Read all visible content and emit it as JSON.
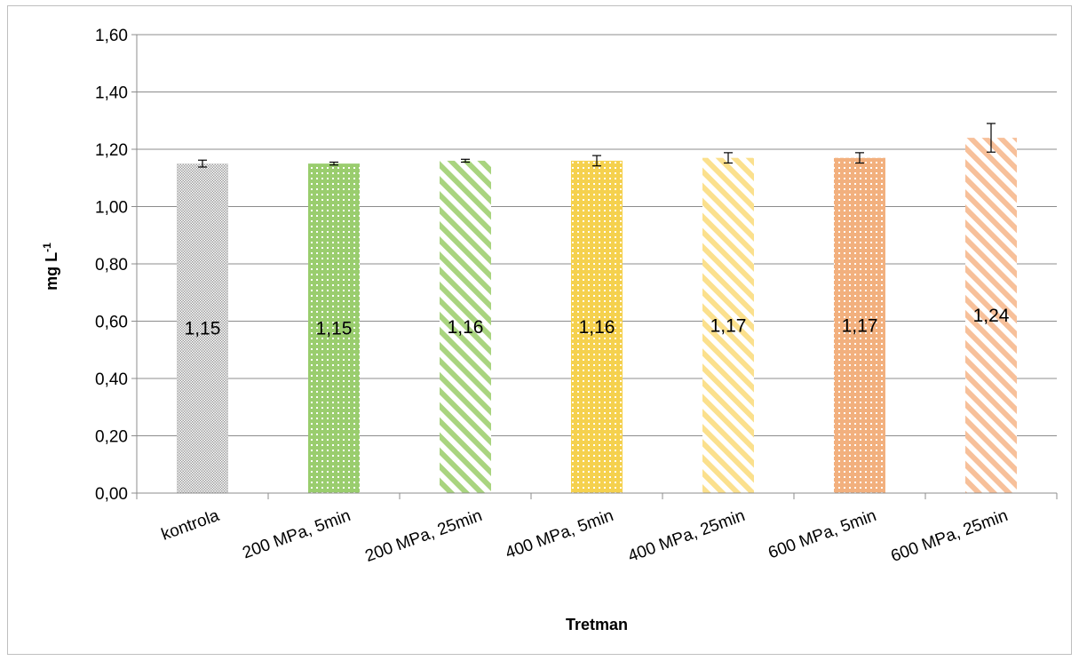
{
  "chart_data": {
    "type": "bar",
    "title": "",
    "xlabel": "Tretman",
    "ylabel_base": "mg L",
    "ylabel_sup": "-1",
    "ylim": [
      0,
      1.6
    ],
    "y_ticks": [
      "0,00",
      "0,20",
      "0,40",
      "0,60",
      "0,80",
      "1,00",
      "1,20",
      "1,40",
      "1,60"
    ],
    "y_tick_values": [
      0,
      0.2,
      0.4,
      0.6,
      0.8,
      1.0,
      1.2,
      1.4,
      1.6
    ],
    "grid": true,
    "categories": [
      "kontrola",
      "200 MPa, 5min",
      "200 MPa, 25min",
      "400 MPa, 5min",
      "400 MPa, 25min",
      "600 MPa, 5min",
      "600 MPa, 25min"
    ],
    "values": [
      1.15,
      1.15,
      1.16,
      1.16,
      1.17,
      1.17,
      1.24
    ],
    "data_labels": [
      "1,15",
      "1,15",
      "1,16",
      "1,16",
      "1,17",
      "1,17",
      "1,24"
    ],
    "error": [
      0.012,
      0.005,
      0.005,
      0.018,
      0.018,
      0.018,
      0.05
    ],
    "bar_colors": [
      "#9c9c9c",
      "#9acd6e",
      "#a9d47f",
      "#f5d14e",
      "#fbe08d",
      "#f2b07e",
      "#f7c09a"
    ],
    "bar_patterns": [
      "dots",
      "lattice",
      "diagonal",
      "lattice",
      "diagonal",
      "lattice",
      "diagonal"
    ]
  }
}
